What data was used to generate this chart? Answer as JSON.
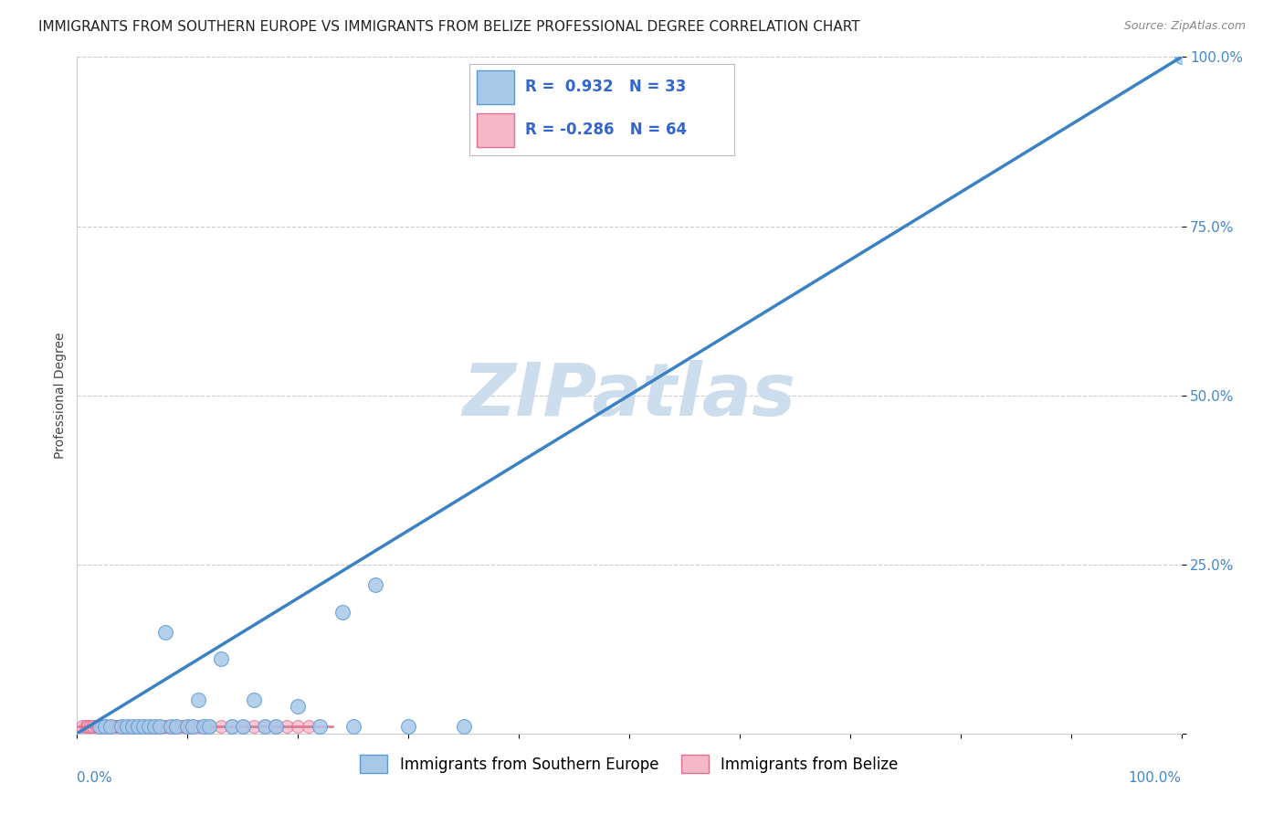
{
  "title": "IMMIGRANTS FROM SOUTHERN EUROPE VS IMMIGRANTS FROM BELIZE PROFESSIONAL DEGREE CORRELATION CHART",
  "source": "Source: ZipAtlas.com",
  "xlabel_bottom": "Immigrants from Southern Europe",
  "ylabel": "Professional Degree",
  "xlabel_legend2": "Immigrants from Belize",
  "xlim": [
    0,
    1.0
  ],
  "ylim": [
    0,
    1.0
  ],
  "yticks": [
    0.0,
    0.25,
    0.5,
    0.75,
    1.0
  ],
  "ytick_labels": [
    "",
    "25.0%",
    "50.0%",
    "75.0%",
    "100.0%"
  ],
  "blue_R": 0.932,
  "blue_N": 33,
  "pink_R": -0.286,
  "pink_N": 64,
  "blue_color": "#a8c8e8",
  "blue_edge_color": "#5b9bd5",
  "pink_color": "#f4b8c8",
  "pink_edge_color": "#e07090",
  "trend_line_color": "#3b82c4",
  "watermark_color": "#ccdded",
  "background_color": "#ffffff",
  "grid_color": "#cccccc",
  "blue_scatter_x": [
    0.02,
    0.025,
    0.03,
    0.04,
    0.045,
    0.05,
    0.055,
    0.06,
    0.065,
    0.07,
    0.075,
    0.08,
    0.085,
    0.09,
    0.1,
    0.105,
    0.11,
    0.115,
    0.12,
    0.13,
    0.14,
    0.15,
    0.16,
    0.17,
    0.18,
    0.2,
    0.22,
    0.24,
    0.25,
    0.27,
    0.3,
    0.35,
    1.0
  ],
  "blue_scatter_y": [
    0.01,
    0.01,
    0.01,
    0.01,
    0.01,
    0.01,
    0.01,
    0.01,
    0.01,
    0.01,
    0.01,
    0.15,
    0.01,
    0.01,
    0.01,
    0.01,
    0.05,
    0.01,
    0.01,
    0.11,
    0.01,
    0.01,
    0.05,
    0.01,
    0.01,
    0.04,
    0.01,
    0.18,
    0.01,
    0.22,
    0.01,
    0.01,
    1.0
  ],
  "pink_scatter_x": [
    0.005,
    0.008,
    0.01,
    0.01,
    0.01,
    0.012,
    0.012,
    0.015,
    0.015,
    0.015,
    0.018,
    0.018,
    0.02,
    0.02,
    0.02,
    0.022,
    0.022,
    0.025,
    0.025,
    0.025,
    0.028,
    0.028,
    0.03,
    0.03,
    0.03,
    0.035,
    0.035,
    0.038,
    0.038,
    0.04,
    0.04,
    0.042,
    0.042,
    0.045,
    0.045,
    0.05,
    0.05,
    0.055,
    0.055,
    0.06,
    0.06,
    0.065,
    0.07,
    0.07,
    0.075,
    0.08,
    0.08,
    0.085,
    0.09,
    0.09,
    0.095,
    0.1,
    0.105,
    0.11,
    0.12,
    0.13,
    0.14,
    0.15,
    0.16,
    0.17,
    0.18,
    0.19,
    0.2,
    0.21
  ],
  "pink_scatter_y": [
    0.01,
    0.01,
    0.01,
    0.01,
    0.01,
    0.01,
    0.01,
    0.01,
    0.01,
    0.01,
    0.01,
    0.01,
    0.01,
    0.01,
    0.01,
    0.01,
    0.01,
    0.01,
    0.01,
    0.01,
    0.01,
    0.01,
    0.01,
    0.01,
    0.01,
    0.01,
    0.01,
    0.01,
    0.01,
    0.01,
    0.01,
    0.01,
    0.01,
    0.01,
    0.01,
    0.01,
    0.01,
    0.01,
    0.01,
    0.01,
    0.01,
    0.01,
    0.01,
    0.01,
    0.01,
    0.01,
    0.01,
    0.01,
    0.01,
    0.01,
    0.01,
    0.01,
    0.01,
    0.01,
    0.01,
    0.01,
    0.01,
    0.01,
    0.01,
    0.01,
    0.01,
    0.01,
    0.01,
    0.01
  ],
  "trend_x": [
    0.0,
    1.0
  ],
  "trend_y": [
    0.0,
    1.0
  ],
  "title_fontsize": 11,
  "axis_label_fontsize": 10,
  "tick_fontsize": 11,
  "legend_fontsize": 12,
  "watermark_fontsize": 58,
  "inner_legend_fontsize": 12
}
